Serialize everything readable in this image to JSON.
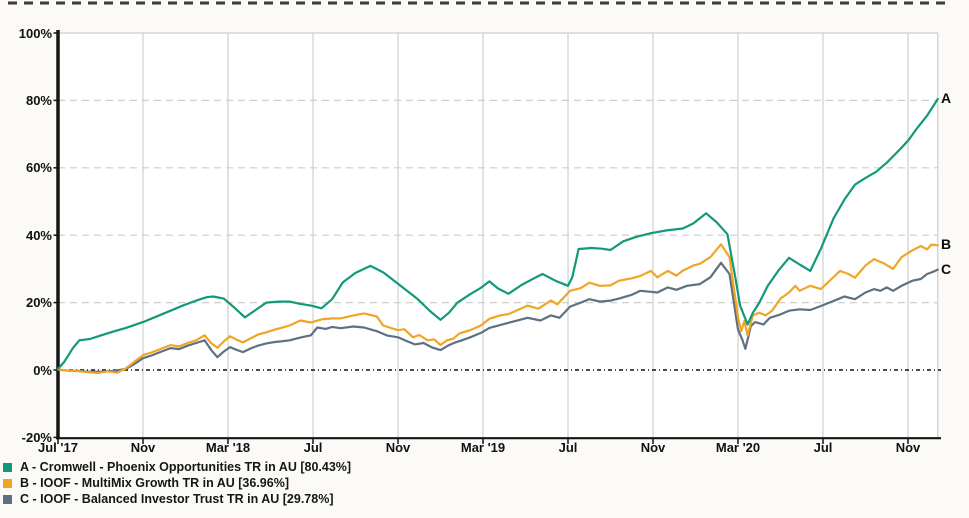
{
  "chart_data": {
    "type": "line",
    "title": "",
    "xlabel": "",
    "ylabel": "",
    "x_unit": "months since Jul 2017",
    "xlim": [
      0,
      41.4
    ],
    "ylim": [
      -20,
      100
    ],
    "grid": true,
    "zero_line": true,
    "legend_position": "bottom-left",
    "x_ticks": [
      {
        "label": "Jul '17",
        "m": 0
      },
      {
        "label": "Nov",
        "m": 4
      },
      {
        "label": "Mar '18",
        "m": 8
      },
      {
        "label": "Jul",
        "m": 12
      },
      {
        "label": "Nov",
        "m": 16
      },
      {
        "label": "Mar '19",
        "m": 20
      },
      {
        "label": "Jul",
        "m": 24
      },
      {
        "label": "Nov",
        "m": 28
      },
      {
        "label": "Mar '20",
        "m": 32
      },
      {
        "label": "Jul",
        "m": 36
      },
      {
        "label": "Nov",
        "m": 40
      }
    ],
    "y_ticks": [
      {
        "label": "100%",
        "v": 100
      },
      {
        "label": "80%",
        "v": 80
      },
      {
        "label": "60%",
        "v": 60
      },
      {
        "label": "40%",
        "v": 40
      },
      {
        "label": "20%",
        "v": 20
      },
      {
        "label": "0%",
        "v": 0
      },
      {
        "label": "-20%",
        "v": -20
      }
    ],
    "series": [
      {
        "id": "A",
        "end_label": "A",
        "name": "Cromwell - Phoenix Opportunities TR in AU",
        "final_return_pct": 80.43,
        "legend_label": "A - Cromwell - Phoenix Opportunities TR in AU [80.43%]",
        "color": "#12997b",
        "points": [
          [
            0,
            0.3
          ],
          [
            0.3,
            2.5
          ],
          [
            0.7,
            6.5
          ],
          [
            1.0,
            8.8
          ],
          [
            1.5,
            9.2
          ],
          [
            2.0,
            10.2
          ],
          [
            2.6,
            11.4
          ],
          [
            3.2,
            12.5
          ],
          [
            4.0,
            14.2
          ],
          [
            4.6,
            15.8
          ],
          [
            5.3,
            17.6
          ],
          [
            5.9,
            19.2
          ],
          [
            6.5,
            20.6
          ],
          [
            7.0,
            21.6
          ],
          [
            7.3,
            21.8
          ],
          [
            7.8,
            21.2
          ],
          [
            8.3,
            18.5
          ],
          [
            8.8,
            15.6
          ],
          [
            9.3,
            17.8
          ],
          [
            9.8,
            20.0
          ],
          [
            10.4,
            20.3
          ],
          [
            10.9,
            20.3
          ],
          [
            11.4,
            19.6
          ],
          [
            11.9,
            19.1
          ],
          [
            12.4,
            18.3
          ],
          [
            12.9,
            21.0
          ],
          [
            13.4,
            26.0
          ],
          [
            14.0,
            28.8
          ],
          [
            14.7,
            30.9
          ],
          [
            15.3,
            29.0
          ],
          [
            16.0,
            25.6
          ],
          [
            16.9,
            21.2
          ],
          [
            17.5,
            17.5
          ],
          [
            18.0,
            14.9
          ],
          [
            18.4,
            17.0
          ],
          [
            18.8,
            20.0
          ],
          [
            19.4,
            22.5
          ],
          [
            19.9,
            24.4
          ],
          [
            20.3,
            26.3
          ],
          [
            20.7,
            24.2
          ],
          [
            21.2,
            22.6
          ],
          [
            21.8,
            25.2
          ],
          [
            22.4,
            27.2
          ],
          [
            22.8,
            28.5
          ],
          [
            23.4,
            26.5
          ],
          [
            24.0,
            25.0
          ],
          [
            24.2,
            27.5
          ],
          [
            24.5,
            35.9
          ],
          [
            25.1,
            36.2
          ],
          [
            25.6,
            36.0
          ],
          [
            26.0,
            35.6
          ],
          [
            26.6,
            38.2
          ],
          [
            27.2,
            39.5
          ],
          [
            27.9,
            40.6
          ],
          [
            28.6,
            41.4
          ],
          [
            29.4,
            42.0
          ],
          [
            29.9,
            43.5
          ],
          [
            30.5,
            46.5
          ],
          [
            31.0,
            43.8
          ],
          [
            31.5,
            40.3
          ],
          [
            31.9,
            26.5
          ],
          [
            32.1,
            19.1
          ],
          [
            32.45,
            13.5
          ],
          [
            32.7,
            17.0
          ],
          [
            33.0,
            20.0
          ],
          [
            33.4,
            25.0
          ],
          [
            33.9,
            29.5
          ],
          [
            34.4,
            33.3
          ],
          [
            34.9,
            31.3
          ],
          [
            35.4,
            29.4
          ],
          [
            35.9,
            36.0
          ],
          [
            36.5,
            45.0
          ],
          [
            37.0,
            50.5
          ],
          [
            37.5,
            55.0
          ],
          [
            38.0,
            57.0
          ],
          [
            38.5,
            58.8
          ],
          [
            39.0,
            61.5
          ],
          [
            39.5,
            64.7
          ],
          [
            40.0,
            68.0
          ],
          [
            40.4,
            71.5
          ],
          [
            40.9,
            75.5
          ],
          [
            41.4,
            80.43
          ]
        ]
      },
      {
        "id": "B",
        "end_label": "B",
        "name": "IOOF - MultiMix Growth TR in AU",
        "final_return_pct": 36.96,
        "legend_label": "B - IOOF - MultiMix Growth TR in AU [36.96%]",
        "color": "#f0a524",
        "points": [
          [
            0,
            0.2
          ],
          [
            0.5,
            -0.2
          ],
          [
            1.0,
            -0.4
          ],
          [
            1.5,
            -0.7
          ],
          [
            1.9,
            -0.9
          ],
          [
            2.3,
            -0.4
          ],
          [
            2.8,
            -0.8
          ],
          [
            3.2,
            0.5
          ],
          [
            3.6,
            2.5
          ],
          [
            4.0,
            4.4
          ],
          [
            4.4,
            5.2
          ],
          [
            4.8,
            6.2
          ],
          [
            5.3,
            7.4
          ],
          [
            5.7,
            7.0
          ],
          [
            6.1,
            8.0
          ],
          [
            6.5,
            8.8
          ],
          [
            6.9,
            10.3
          ],
          [
            7.2,
            8.0
          ],
          [
            7.5,
            6.6
          ],
          [
            7.8,
            8.5
          ],
          [
            8.1,
            10.0
          ],
          [
            8.4,
            9.0
          ],
          [
            8.7,
            8.2
          ],
          [
            9.1,
            9.5
          ],
          [
            9.4,
            10.5
          ],
          [
            9.8,
            11.2
          ],
          [
            10.2,
            12.0
          ],
          [
            10.5,
            12.5
          ],
          [
            10.9,
            13.2
          ],
          [
            11.4,
            14.7
          ],
          [
            11.9,
            14.1
          ],
          [
            12.4,
            15.0
          ],
          [
            12.9,
            15.3
          ],
          [
            13.3,
            15.3
          ],
          [
            13.9,
            16.2
          ],
          [
            14.4,
            16.8
          ],
          [
            15.0,
            15.9
          ],
          [
            15.3,
            13.2
          ],
          [
            16.0,
            11.8
          ],
          [
            16.3,
            12.1
          ],
          [
            16.7,
            9.7
          ],
          [
            17.0,
            10.4
          ],
          [
            17.4,
            8.8
          ],
          [
            17.7,
            9.1
          ],
          [
            18.0,
            7.4
          ],
          [
            18.3,
            8.8
          ],
          [
            18.6,
            9.3
          ],
          [
            18.9,
            10.9
          ],
          [
            19.4,
            11.8
          ],
          [
            19.9,
            13.2
          ],
          [
            20.3,
            15.2
          ],
          [
            20.8,
            16.2
          ],
          [
            21.2,
            16.6
          ],
          [
            22.1,
            19.1
          ],
          [
            22.6,
            18.2
          ],
          [
            23.2,
            20.6
          ],
          [
            23.5,
            19.5
          ],
          [
            24.1,
            23.5
          ],
          [
            24.6,
            24.3
          ],
          [
            25.0,
            25.9
          ],
          [
            25.5,
            25.0
          ],
          [
            26.0,
            25.1
          ],
          [
            26.4,
            26.5
          ],
          [
            27.0,
            27.2
          ],
          [
            27.4,
            27.9
          ],
          [
            27.9,
            29.4
          ],
          [
            28.2,
            27.5
          ],
          [
            28.7,
            29.4
          ],
          [
            29.1,
            28.0
          ],
          [
            29.4,
            29.5
          ],
          [
            29.9,
            31.0
          ],
          [
            30.2,
            31.5
          ],
          [
            30.7,
            33.5
          ],
          [
            31.2,
            37.3
          ],
          [
            31.6,
            33.5
          ],
          [
            32.0,
            15.6
          ],
          [
            32.15,
            11.5
          ],
          [
            32.3,
            14.5
          ],
          [
            32.45,
            10.3
          ],
          [
            32.7,
            16.2
          ],
          [
            33.0,
            17.0
          ],
          [
            33.3,
            16.2
          ],
          [
            33.6,
            17.6
          ],
          [
            34.0,
            21.2
          ],
          [
            34.4,
            23.0
          ],
          [
            34.7,
            25.0
          ],
          [
            34.9,
            23.5
          ],
          [
            35.4,
            25.0
          ],
          [
            35.9,
            24.0
          ],
          [
            36.4,
            27.0
          ],
          [
            36.8,
            29.4
          ],
          [
            37.2,
            28.5
          ],
          [
            37.5,
            27.4
          ],
          [
            38.0,
            31.0
          ],
          [
            38.4,
            32.9
          ],
          [
            38.9,
            31.5
          ],
          [
            39.3,
            30.0
          ],
          [
            39.7,
            33.5
          ],
          [
            40.2,
            35.5
          ],
          [
            40.6,
            36.8
          ],
          [
            40.9,
            35.8
          ],
          [
            41.1,
            37.2
          ],
          [
            41.4,
            36.96
          ]
        ]
      },
      {
        "id": "C",
        "end_label": "C",
        "name": "IOOF - Balanced Investor Trust TR in AU",
        "final_return_pct": 29.78,
        "legend_label": "C - IOOF - Balanced Investor Trust TR in AU [29.78%]",
        "color": "#5e7081",
        "points": [
          [
            0,
            0.1
          ],
          [
            0.5,
            -0.2
          ],
          [
            1.0,
            -0.3
          ],
          [
            1.5,
            -0.5
          ],
          [
            2.0,
            -0.5
          ],
          [
            2.6,
            -0.3
          ],
          [
            3.2,
            0.3
          ],
          [
            3.6,
            1.8
          ],
          [
            4.0,
            3.5
          ],
          [
            4.4,
            4.3
          ],
          [
            4.8,
            5.3
          ],
          [
            5.3,
            6.5
          ],
          [
            5.7,
            6.2
          ],
          [
            6.1,
            7.2
          ],
          [
            6.5,
            8.0
          ],
          [
            6.9,
            8.8
          ],
          [
            7.2,
            6.0
          ],
          [
            7.5,
            3.8
          ],
          [
            7.8,
            5.5
          ],
          [
            8.1,
            6.8
          ],
          [
            8.4,
            6.0
          ],
          [
            8.7,
            5.3
          ],
          [
            9.1,
            6.5
          ],
          [
            9.4,
            7.2
          ],
          [
            9.8,
            7.9
          ],
          [
            10.2,
            8.3
          ],
          [
            10.5,
            8.5
          ],
          [
            10.9,
            8.8
          ],
          [
            11.4,
            9.6
          ],
          [
            11.9,
            10.3
          ],
          [
            12.2,
            12.6
          ],
          [
            12.6,
            12.2
          ],
          [
            12.9,
            12.8
          ],
          [
            13.3,
            12.4
          ],
          [
            13.9,
            12.9
          ],
          [
            14.4,
            12.6
          ],
          [
            15.0,
            11.5
          ],
          [
            15.5,
            10.2
          ],
          [
            16.0,
            9.7
          ],
          [
            16.4,
            8.6
          ],
          [
            16.8,
            7.6
          ],
          [
            17.2,
            8.0
          ],
          [
            17.6,
            6.7
          ],
          [
            18.0,
            5.9
          ],
          [
            18.4,
            7.4
          ],
          [
            18.7,
            8.2
          ],
          [
            19.0,
            8.8
          ],
          [
            19.4,
            9.7
          ],
          [
            19.9,
            11.0
          ],
          [
            20.3,
            12.5
          ],
          [
            21.2,
            14.0
          ],
          [
            22.1,
            15.5
          ],
          [
            22.7,
            14.7
          ],
          [
            23.2,
            16.2
          ],
          [
            23.6,
            15.5
          ],
          [
            24.1,
            18.8
          ],
          [
            24.6,
            20.0
          ],
          [
            25.0,
            21.0
          ],
          [
            25.5,
            20.3
          ],
          [
            26.0,
            20.6
          ],
          [
            26.4,
            21.2
          ],
          [
            27.0,
            22.3
          ],
          [
            27.4,
            23.5
          ],
          [
            27.9,
            23.2
          ],
          [
            28.2,
            23.0
          ],
          [
            28.7,
            24.5
          ],
          [
            29.1,
            23.8
          ],
          [
            29.6,
            25.0
          ],
          [
            30.2,
            25.5
          ],
          [
            30.7,
            27.5
          ],
          [
            31.2,
            31.8
          ],
          [
            31.6,
            28.5
          ],
          [
            32.0,
            12.0
          ],
          [
            32.2,
            9.0
          ],
          [
            32.35,
            6.3
          ],
          [
            32.6,
            13.0
          ],
          [
            32.8,
            14.2
          ],
          [
            33.2,
            13.5
          ],
          [
            33.5,
            15.5
          ],
          [
            34.0,
            16.5
          ],
          [
            34.4,
            17.6
          ],
          [
            34.9,
            18.0
          ],
          [
            35.4,
            17.8
          ],
          [
            35.9,
            19.0
          ],
          [
            36.3,
            20.0
          ],
          [
            36.7,
            21.0
          ],
          [
            37.0,
            21.8
          ],
          [
            37.5,
            21.0
          ],
          [
            38.0,
            23.0
          ],
          [
            38.4,
            24.0
          ],
          [
            38.7,
            23.5
          ],
          [
            39.0,
            24.5
          ],
          [
            39.3,
            23.5
          ],
          [
            39.7,
            25.0
          ],
          [
            40.2,
            26.5
          ],
          [
            40.6,
            27.0
          ],
          [
            40.9,
            28.5
          ],
          [
            41.2,
            29.2
          ],
          [
            41.4,
            29.78
          ]
        ]
      }
    ],
    "style": {
      "grid_color": "#cfcec9",
      "axis_color": "#151515",
      "zero_line_color": "#111111",
      "top_rule_color": "#3b3b3b",
      "plot_bg": "#ffffff"
    }
  }
}
